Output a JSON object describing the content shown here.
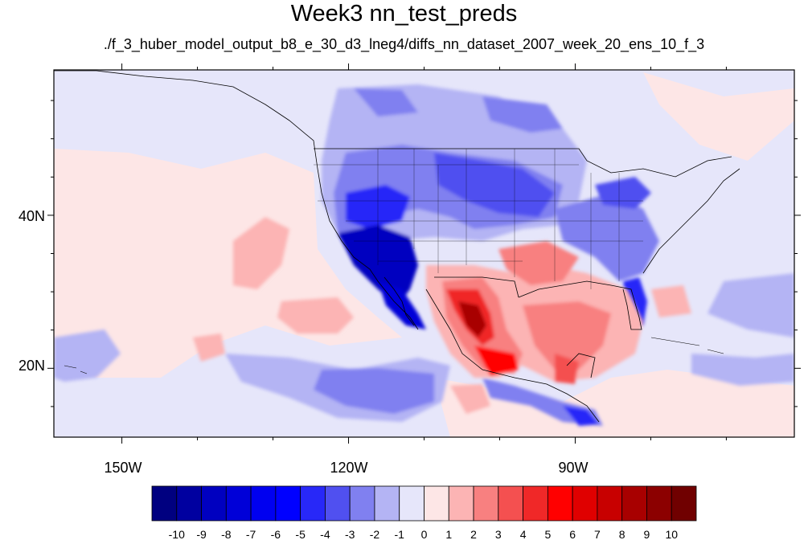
{
  "title": "Week3 nn_test_preds",
  "subtitle": "./f_3_huber_model_output_b8_e_30_d3_lneg4/diffs_nn_dataset_2007_week_20_ens_10_f_3",
  "map": {
    "projection": "cylindrical-equidistant",
    "lon_range": [
      -159,
      -61
    ],
    "lat_range": [
      11,
      59
    ],
    "lon_labels": [
      "150W",
      "120W",
      "90W"
    ],
    "lat_labels": [
      "40N",
      "20N"
    ],
    "background_color": "#e6e6fa",
    "features": [
      {
        "name": "mexico-warm-anomaly",
        "value": 9
      },
      {
        "name": "gulf-coast-warm-anomaly",
        "value": 4
      },
      {
        "name": "southwest-cold-anomaly",
        "value": -9
      },
      {
        "name": "northern-plains-cold-anomaly",
        "value": -5
      },
      {
        "name": "great-lakes-cold-anomaly",
        "value": -3
      },
      {
        "name": "florida-cold-anomaly",
        "value": -5
      },
      {
        "name": "central-pacific-cool-band",
        "value": -3
      },
      {
        "name": "eastern-pacific-warm-patch",
        "value": 2
      }
    ]
  },
  "colorbar": {
    "levels": [
      "-10",
      "-9",
      "-8",
      "-7",
      "-6",
      "-5",
      "-4",
      "-3",
      "-2",
      "-1",
      "0",
      "1",
      "2",
      "3",
      "4",
      "5",
      "6",
      "7",
      "8",
      "9",
      "10"
    ],
    "colors": [
      "#000080",
      "#0000a0",
      "#0000c0",
      "#0000d8",
      "#0000f0",
      "#0000ff",
      "#2828f8",
      "#5050f0",
      "#8080f0",
      "#b4b4f4",
      "#e6e6fa",
      "#fde6e6",
      "#fcb4b4",
      "#f88080",
      "#f45050",
      "#f02828",
      "#ff0000",
      "#e00000",
      "#c80000",
      "#a80000",
      "#8c0000",
      "#700000"
    ]
  }
}
